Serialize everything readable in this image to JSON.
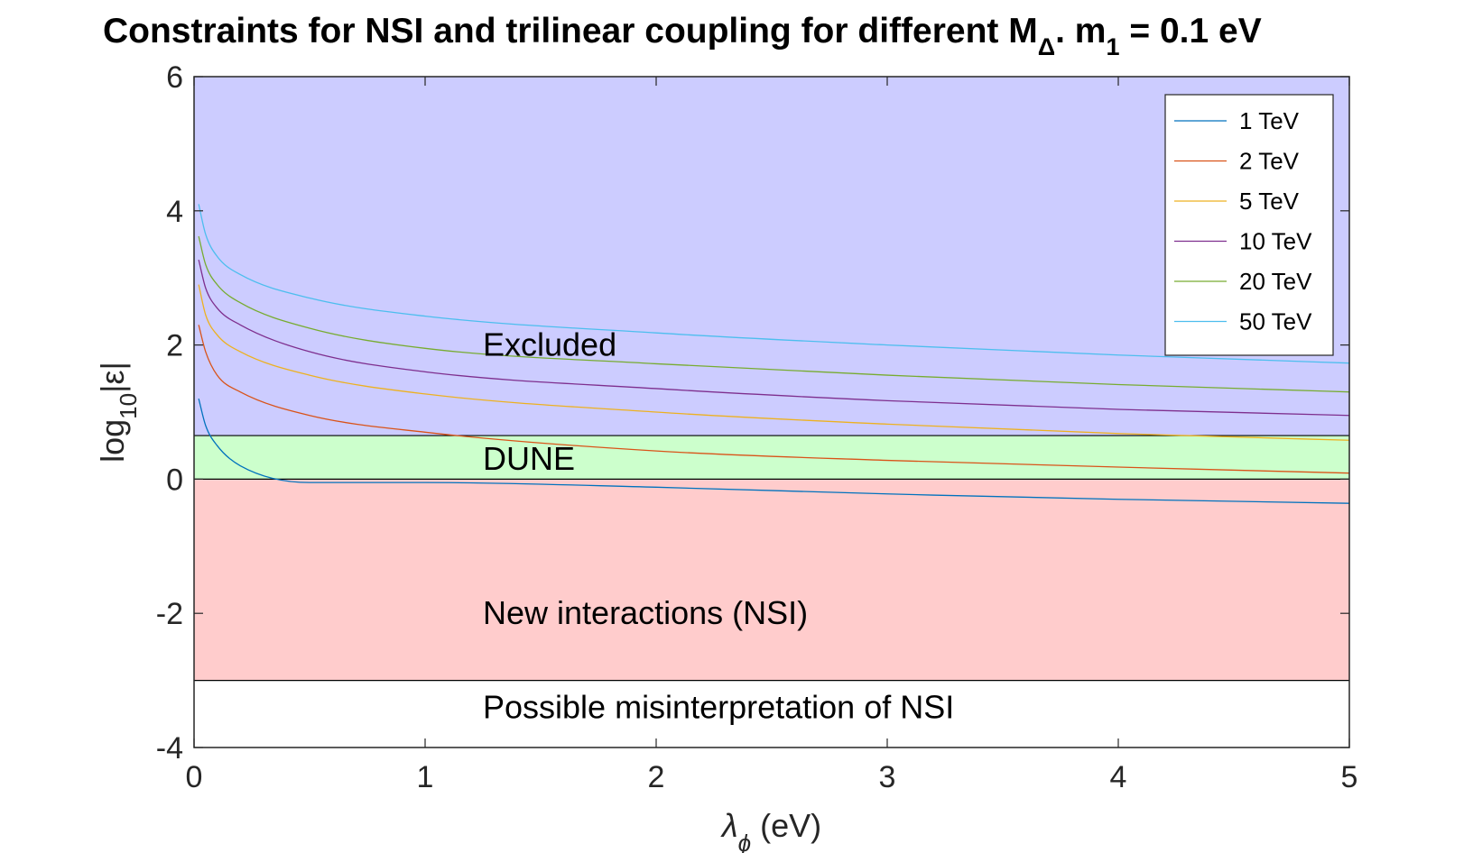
{
  "chart_data": {
    "type": "line",
    "title": {
      "main": "Constraints for NSI and trilinear coupling for different M",
      "sub_symbol": "Δ",
      "mid": ". m",
      "sub_index": "1",
      "end": " = 0.1 eV"
    },
    "xlabel": {
      "symbol": "λ",
      "sub": "ϕ",
      "unit": " (eV)"
    },
    "ylabel": {
      "pre": "log",
      "sub": "10",
      "post": "|ε|"
    },
    "xlim": [
      0,
      5
    ],
    "ylim": [
      -4,
      6
    ],
    "xticks": [
      0,
      1,
      2,
      3,
      4,
      5
    ],
    "yticks": [
      -4,
      -2,
      0,
      2,
      4,
      6
    ],
    "regions": [
      {
        "label": "Excluded",
        "y_from": 0.65,
        "y_to": 6,
        "color": "#ccccff",
        "label_x": 1.25,
        "label_y": 2.0
      },
      {
        "label": "DUNE",
        "y_from": 0,
        "y_to": 0.65,
        "color": "#ccffcc",
        "label_x": 1.25,
        "label_y": 0.3
      },
      {
        "label": "New interactions (NSI)",
        "y_from": -3,
        "y_to": 0,
        "color": "#ffcccc",
        "label_x": 1.25,
        "label_y": -2.0
      },
      {
        "label": "Possible misinterpretation of NSI",
        "y_from": -4,
        "y_to": -3,
        "color": "#ffffff",
        "label_x": 1.25,
        "label_y": -3.4
      }
    ],
    "boundary_lines": [
      0.65,
      0,
      -3
    ],
    "series": [
      {
        "name": "1 TeV",
        "color": "#0072bd",
        "x": [
          0.02,
          0.05,
          0.1,
          0.2,
          0.5,
          1,
          2,
          3,
          4,
          5
        ],
        "y": [
          1.2,
          0.8,
          0.5,
          0.2,
          -0.05,
          -0.05,
          -0.12,
          -0.22,
          -0.3,
          -0.36
        ]
      },
      {
        "name": "2 TeV",
        "color": "#d95319",
        "x": [
          0.02,
          0.05,
          0.1,
          0.2,
          0.5,
          1,
          2,
          3,
          4,
          5
        ],
        "y": [
          2.3,
          1.9,
          1.55,
          1.3,
          0.95,
          0.7,
          0.42,
          0.28,
          0.18,
          0.09
        ]
      },
      {
        "name": "5 TeV",
        "color": "#edb120",
        "x": [
          0.02,
          0.05,
          0.1,
          0.2,
          0.5,
          1,
          2,
          3,
          4,
          5
        ],
        "y": [
          2.9,
          2.45,
          2.15,
          1.9,
          1.55,
          1.27,
          1.0,
          0.82,
          0.68,
          0.58
        ]
      },
      {
        "name": "10 TeV",
        "color": "#7e2f8e",
        "x": [
          0.02,
          0.05,
          0.1,
          0.2,
          0.5,
          1,
          2,
          3,
          4,
          5
        ],
        "y": [
          3.27,
          2.85,
          2.55,
          2.3,
          1.9,
          1.6,
          1.35,
          1.17,
          1.04,
          0.95
        ]
      },
      {
        "name": "20 TeV",
        "color": "#77ac30",
        "x": [
          0.02,
          0.05,
          0.1,
          0.2,
          0.5,
          1,
          2,
          3,
          4,
          5
        ],
        "y": [
          3.62,
          3.2,
          2.9,
          2.63,
          2.25,
          1.95,
          1.72,
          1.55,
          1.41,
          1.3
        ]
      },
      {
        "name": "50 TeV",
        "color": "#4dbeee",
        "x": [
          0.02,
          0.05,
          0.1,
          0.2,
          0.5,
          1,
          2,
          3,
          4,
          5
        ],
        "y": [
          4.1,
          3.65,
          3.32,
          3.05,
          2.7,
          2.43,
          2.18,
          2.0,
          1.85,
          1.73
        ]
      }
    ],
    "legend_position": "top-right",
    "grid": false
  }
}
